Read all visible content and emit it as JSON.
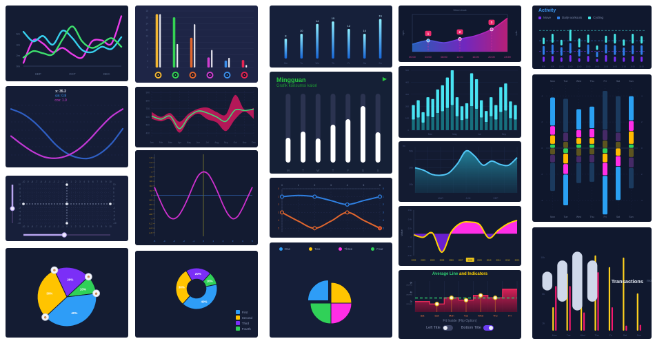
{
  "page": {
    "background": "#ffffff",
    "panel_background": "#141c33"
  },
  "panels": {
    "p8": {
      "legend": [
        {
          "label": "First",
          "color": "#2e9df7"
        },
        {
          "label": "Second",
          "color": "#ffc400"
        },
        {
          "label": "Third",
          "color": "#7b2ff7"
        },
        {
          "label": "Fourth",
          "color": "#30d158"
        }
      ]
    },
    "p10": {
      "title": "Mingguan",
      "subtitle": "Grafik konsumsi kalori",
      "play_icon": "▶"
    },
    "p12": {
      "legend": [
        {
          "label": "One",
          "color": "#2e9df7"
        },
        {
          "label": "Two",
          "color": "#ffc400"
        },
        {
          "label": "Three",
          "color": "#ff2ee6"
        },
        {
          "label": "Four",
          "color": "#30d158"
        }
      ]
    },
    "p17": {
      "title_green": "Average Line",
      "title_yellow": " and Indicators",
      "caption": "Fit Inside (Flip Option)",
      "toggles": [
        {
          "label": "Left Title",
          "on": false
        },
        {
          "label": "Bottom Title",
          "on": true
        }
      ]
    },
    "p18": {
      "title": "Activity",
      "legend": [
        {
          "label": "Move",
          "color": "#7b2ff7"
        },
        {
          "label": "Daily workouts",
          "color": "#2f7fe8"
        },
        {
          "label": "Cycling",
          "color": "#45e6e6"
        }
      ]
    },
    "p20": {
      "title": "Transactions",
      "suffix": "mo"
    }
  },
  "chart_data": [
    {
      "id": "p1",
      "type": "multiline",
      "x_labels": [
        "SEP",
        "OCT",
        "DEC"
      ],
      "y_labels": [
        "6m",
        "4m",
        "2m",
        "0m"
      ],
      "ymax": 10,
      "series": [
        {
          "name": "magenta",
          "color": "#ea3cea",
          "values": [
            0.6,
            4.8,
            4.2,
            2.6,
            3.4,
            2.2,
            1.6,
            4.6,
            4.8,
            4.2,
            9.3
          ]
        },
        {
          "name": "cyan",
          "color": "#37d0ee",
          "values": [
            6.4,
            4.6,
            5.6,
            4.0,
            6.6,
            5.2,
            3.0,
            2.6,
            3.6,
            3.2,
            5.4
          ]
        },
        {
          "name": "green",
          "color": "#3ee06e",
          "values": [
            1.6,
            2.8,
            2.4,
            2.2,
            5.0,
            7.4,
            4.6,
            3.4,
            4.2,
            5.2,
            3.6
          ]
        }
      ]
    },
    {
      "id": "p2",
      "type": "sincross",
      "tooltip": [
        {
          "text": "x: 35.2",
          "color": "#e8ecf5"
        },
        {
          "text": "sin: 0.8",
          "color": "#3f9bf5"
        },
        {
          "text": "cos: 1.0",
          "color": "#d53cd5"
        }
      ],
      "series": [
        {
          "name": "sin",
          "color": "#2f5fc4",
          "values": [
            1.0,
            0.82,
            0.5,
            0.05,
            -0.45,
            -0.8,
            -0.98,
            -1.0,
            -0.8,
            -0.4,
            0.2
          ]
        },
        {
          "name": "cos",
          "color": "#c338d6",
          "values": [
            -0.1,
            -0.45,
            -0.75,
            -0.95,
            -1.0,
            -0.9,
            -0.65,
            -0.25,
            0.25,
            0.7,
            1.0
          ]
        }
      ]
    },
    {
      "id": "p3",
      "type": "zoomgrid",
      "axis_min": -10,
      "axis_max": 10,
      "slider_color": "#b9a6f0",
      "v_slider_pos": 0.62,
      "h_slider_pos": 0.47
    },
    {
      "id": "p4",
      "type": "pie",
      "inner_ratio": 0,
      "start_angle": -115,
      "cy_off": 6,
      "badges": true,
      "badge_glyph": "☻",
      "slices": [
        {
          "label": "20%",
          "value": 20,
          "color": "#7b2ff7"
        },
        {
          "label": "10%",
          "value": 10,
          "color": "#30d158"
        },
        {
          "label": "40%",
          "value": 40,
          "color": "#2e9df7"
        },
        {
          "label": "30%",
          "value": 30,
          "color": "#ffc400"
        }
      ]
    },
    {
      "id": "p5",
      "type": "barpairs",
      "ymax": 18,
      "y_step": 2,
      "groups": [
        {
          "color": "#f2b632",
          "bar": 17,
          "white": 17
        },
        {
          "color": "#35d453",
          "bar": 16,
          "white": 7.5
        },
        {
          "color": "#e0662e",
          "bar": 9.5,
          "white": 13.8
        },
        {
          "color": "#cf3ecf",
          "bar": 3.2,
          "white": 5.6
        },
        {
          "color": "#3b8de8",
          "bar": 2.2,
          "white": 3.1
        },
        {
          "color": "#e82552",
          "bar": 2.4,
          "white": 0.8
        }
      ]
    },
    {
      "id": "p6",
      "type": "band",
      "x_labels": [
        "Jan",
        "Feb",
        "Mar",
        "Apr",
        "May",
        "Jun",
        "Jul",
        "Aug",
        "Sep",
        "Oct",
        "Nov",
        "Dec"
      ],
      "y_ticks": [
        400,
        500,
        600,
        700,
        800,
        900
      ],
      "ymin": 350,
      "ymax": 920,
      "upper": [
        660,
        600,
        645,
        540,
        640,
        700,
        715,
        660,
        630,
        870,
        690,
        710
      ],
      "lower": [
        575,
        545,
        565,
        405,
        565,
        640,
        570,
        530,
        425,
        570,
        665,
        575
      ],
      "line": [
        610,
        572,
        608,
        455,
        600,
        672,
        648,
        598,
        545,
        685,
        678,
        695
      ],
      "band_color": "#c2185b",
      "line_color": "#43d977"
    },
    {
      "id": "p7",
      "type": "sinaxes",
      "y_tick_top": 1.6,
      "y_step": 0.2,
      "x_min": -5,
      "x_max": 5,
      "curve_color": "#cf30cf",
      "y_label_color": "#d4a017",
      "x_label_color": "#3e8ef7",
      "values": [
        0.35,
        -0.15,
        -0.6,
        -0.92,
        -1.0,
        -0.85,
        -0.5,
        -0.05,
        0.45,
        0.85,
        1.0,
        0.9,
        0.55,
        0.1,
        -0.4,
        -0.8,
        -1.0,
        -0.9,
        -0.55,
        -0.1,
        0.35
      ]
    },
    {
      "id": "p8",
      "type": "pie",
      "inner_ratio": 0.46,
      "start_angle": -120,
      "cy_off": -8,
      "radius": 30,
      "slices": [
        {
          "label": "20%",
          "value": 20,
          "color": "#7b2ff7"
        },
        {
          "label": "10%",
          "value": 10,
          "color": "#30d158"
        },
        {
          "label": "40%",
          "value": 40,
          "color": "#2e9df7"
        },
        {
          "label": "30%",
          "value": 30,
          "color": "#ffc400"
        }
      ]
    },
    {
      "id": "p9",
      "type": "gradbars",
      "values": [
        8,
        10,
        14,
        15,
        12,
        10,
        16
      ],
      "ymax": 17,
      "x_labels": [
        "Mo",
        "Tu",
        "We",
        "Th",
        "Fr",
        "Sa",
        "Su"
      ],
      "bar_top_color": "#8ff0ff",
      "bar_bottom_color": "#1766d8"
    },
    {
      "id": "p10",
      "type": "capsules",
      "fills": [
        0.36,
        0.45,
        0.35,
        0.55,
        0.63,
        0.82,
        0.44
      ],
      "x_labels": [
        "M",
        "T",
        "W",
        "T",
        "F",
        "S",
        "S"
      ],
      "track_color": "#2b3350",
      "fill_color": "#ffffff"
    },
    {
      "id": "p11",
      "type": "duallines",
      "x_ticks": [
        0,
        1,
        2,
        3,
        4,
        5,
        6
      ],
      "y_ticks": [
        0,
        1,
        2,
        3,
        4,
        5
      ],
      "ymax": 5.5,
      "marker_x": [
        0,
        2,
        4,
        6
      ],
      "series": [
        {
          "name": "blue",
          "color": "#2f7fe0",
          "values": [
            1,
            0.85,
            1,
            1.5,
            2,
            1.5,
            1
          ]
        },
        {
          "name": "orange",
          "color": "#e0662e",
          "values": [
            3,
            4.1,
            5,
            4.1,
            3,
            4,
            5
          ]
        }
      ]
    },
    {
      "id": "p12",
      "type": "pie",
      "inner_ratio": 0,
      "start_angle": -180,
      "cy_off": 12,
      "radius": 30,
      "explode_index": 0,
      "slices": [
        {
          "label": "",
          "value": 25,
          "color": "#2e9df7"
        },
        {
          "label": "",
          "value": 25,
          "color": "#ffc400"
        },
        {
          "label": "",
          "value": 25,
          "color": "#ff2ee6"
        },
        {
          "label": "",
          "value": 25,
          "color": "#30d158"
        }
      ]
    },
    {
      "id": "p13",
      "type": "areatime",
      "title": "Wind clock",
      "side_label": "mph",
      "x_labels": [
        "00:00",
        "04:00",
        "08:00",
        "12:00",
        "16:00",
        "20:00",
        "23:59"
      ],
      "values": [
        2,
        3,
        2.4,
        3.4,
        4.3,
        6,
        9
      ],
      "ymax": 10,
      "badges": [
        {
          "index": 1,
          "label": "1"
        },
        {
          "index": 3,
          "label": "2"
        },
        {
          "index": 5,
          "label": "3"
        }
      ],
      "colors": {
        "start": "#2f6fd8",
        "mid": "#8a2be2",
        "end": "#e0218a",
        "badge": "#ed2d6e"
      }
    },
    {
      "id": "p14",
      "type": "densebars",
      "bottom_fraction": 0.42,
      "top_color": "#49e4f2",
      "bottom_color": "#17707e",
      "values": [
        0.42,
        0.5,
        0.3,
        0.55,
        0.52,
        0.68,
        0.75,
        0.88,
        1.0,
        0.55,
        0.4,
        0.45,
        0.95,
        0.85,
        0.5,
        0.32,
        0.55,
        0.42,
        0.72,
        0.78,
        0.48,
        0.42
      ],
      "y_labels": [
        "500",
        "400",
        "300",
        "200",
        "100",
        "0"
      ],
      "x_labels": [
        "Mar",
        "May",
        "Jul",
        "Sep"
      ]
    },
    {
      "id": "p15",
      "type": "tealarea",
      "values": [
        30,
        27,
        22,
        21,
        24,
        35,
        50,
        44,
        33,
        38,
        34,
        33,
        42
      ],
      "ymax": 55,
      "y_labels": [
        {
          "v": 50,
          "t": "50k"
        },
        {
          "v": 30,
          "t": "30k"
        },
        {
          "v": 10,
          "t": "10k"
        }
      ],
      "x_labels": [
        {
          "f": 0.25,
          "t": "MAR"
        },
        {
          "f": 0.52,
          "t": "JUN"
        },
        {
          "f": 0.79,
          "t": "SEP"
        }
      ],
      "corner": "m²",
      "line_color": "#52c7f7"
    },
    {
      "id": "p16",
      "type": "banddiv",
      "y_label": "Value",
      "highlight_index": 6,
      "x_labels": [
        "2002",
        "2003",
        "2004",
        "2005",
        "2006",
        "2007",
        "2008",
        "2009",
        "2010",
        "2011",
        "2012",
        "2013"
      ],
      "values": [
        -0.03,
        -0.1,
        0.02,
        -0.52,
        0.05,
        0.3,
        0.33,
        0.26,
        -0.12,
        0.1,
        0.28,
        0.38
      ],
      "y_ticks": [
        "0.6k",
        "0.4k",
        "0.2k",
        "0",
        "-0.2k",
        "-0.4k"
      ],
      "line_color": "#ffd400",
      "above_color": "#ff2ee6",
      "below_color": "#6a1fd0"
    },
    {
      "id": "p17",
      "type": "stepavg",
      "categories": [
        "Sat",
        "Sun",
        "Mon",
        "Tue",
        "Wed",
        "Thu",
        "Fri"
      ],
      "values": [
        2.2,
        1.7,
        3.0,
        2.5,
        3.5,
        3.0,
        4.8
      ],
      "average": 2.95,
      "ymax": 6.5,
      "marker_indices": [
        1,
        2,
        3,
        4,
        5
      ],
      "y_ticks": [
        {
          "v": 2,
          "t": "2k",
          "sub": "USD/HKD"
        },
        {
          "v": 4,
          "t": "4k",
          "sub": "USD/HKD"
        },
        {
          "v": 6,
          "t": "6k",
          "sub": "USD/HKD"
        }
      ],
      "bar_color": "#e0215a",
      "avg_color": "#2ecc71",
      "x_label_color": "#ff7a45"
    },
    {
      "id": "p18",
      "type": "activity",
      "x_labels": [
        "8:00",
        "9:00",
        "10:00",
        "11:00",
        "12:00",
        "13:00",
        "14:00",
        "15:00",
        "16:00",
        "17:00",
        "18:00",
        "19:00"
      ],
      "bars": [
        [
          0.16,
          0.26,
          0.2
        ],
        [
          0.18,
          0.28,
          0.26
        ],
        [
          0.14,
          0.25,
          0.17
        ],
        [
          0.2,
          0.3,
          0.33
        ],
        [
          0.12,
          0.22,
          0.26
        ],
        [
          0.18,
          0.28,
          0.24
        ],
        [
          0.1,
          0.17,
          0.14
        ],
        [
          0.2,
          0.26,
          0.21
        ],
        [
          0.16,
          0.28,
          0.28
        ],
        [
          0.14,
          0.24,
          0.19
        ],
        [
          0.18,
          0.26,
          0.28
        ],
        [
          0.16,
          0.28,
          0.22
        ]
      ],
      "colors": [
        "#7b2ff7",
        "#2f7fe8",
        "#45e6e6"
      ],
      "dashes": [
        {
          "level": 0.85,
          "color": "#45e6e6"
        },
        {
          "level": 0.58,
          "color": "#2f7fe8"
        },
        {
          "level": 0.3,
          "color": "#7b2ff7"
        }
      ]
    },
    {
      "id": "p19",
      "type": "diverge",
      "days": [
        "Mon",
        "Tue",
        "Wed",
        "Thu",
        "Fri",
        "Sat",
        "Sun"
      ],
      "unit_max": 4.8,
      "y_ticks": [
        "4",
        "2",
        "0",
        "2",
        "4"
      ],
      "colors": {
        "bl": "#2aa0f2",
        "m": "#ff2ee6",
        "y": "#ffb900",
        "g": "#30d158",
        "mb": "#1b3a5e",
        "mp": "#452a66",
        "mo": "#5c5420"
      },
      "bars": [
        {
          "up": [
            [
              "g",
              0.3
            ],
            [
              "y",
              0.7
            ],
            [
              "m",
              0.7
            ],
            [
              "bl",
              2.2
            ]
          ],
          "down": [
            [
              "mo",
              0.5
            ],
            [
              "mp",
              0.6
            ],
            [
              "mb",
              2.2
            ]
          ]
        },
        {
          "up": [
            [
              "mo",
              0.5
            ],
            [
              "mp",
              0.7
            ],
            [
              "mb",
              2.6
            ]
          ],
          "down": [
            [
              "g",
              0.4
            ],
            [
              "y",
              0.8
            ],
            [
              "m",
              0.8
            ],
            [
              "bl",
              2.4
            ]
          ]
        },
        {
          "up": [
            [
              "g",
              0.3
            ],
            [
              "y",
              0.5
            ],
            [
              "m",
              0.6
            ],
            [
              "bl",
              1.6
            ]
          ],
          "down": [
            [
              "mo",
              0.6
            ],
            [
              "mp",
              0.5
            ],
            [
              "mb",
              1.6
            ]
          ]
        },
        {
          "up": [
            [
              "g",
              0.3
            ],
            [
              "y",
              0.5
            ],
            [
              "m",
              0.7
            ],
            [
              "bl",
              1.7
            ]
          ],
          "down": [
            [
              "mo",
              0.5
            ],
            [
              "mp",
              0.6
            ],
            [
              "mb",
              1.5
            ]
          ]
        },
        {
          "up": [
            [
              "mo",
              0.6
            ],
            [
              "mp",
              0.8
            ],
            [
              "mb",
              3.0
            ]
          ],
          "down": [
            [
              "g",
              0.4
            ],
            [
              "y",
              0.7
            ],
            [
              "m",
              1.0
            ],
            [
              "bl",
              3.0
            ]
          ]
        },
        {
          "up": [
            [
              "mo",
              0.5
            ],
            [
              "mp",
              0.7
            ],
            [
              "mb",
              2.8
            ]
          ],
          "down": [
            [
              "y",
              0.6
            ],
            [
              "m",
              0.8
            ],
            [
              "bl",
              2.6
            ]
          ]
        },
        {
          "up": [
            [
              "g",
              0.3
            ],
            [
              "y",
              1.0
            ],
            [
              "m",
              0.8
            ],
            [
              "bl",
              1.9
            ]
          ],
          "down": [
            [
              "mo",
              0.7
            ],
            [
              "mp",
              0.8
            ],
            [
              "mb",
              1.6
            ]
          ]
        }
      ]
    },
    {
      "id": "p20",
      "type": "thinpairs",
      "ymax": 11.5,
      "x_labels": [
        "Mon",
        "Tue",
        "Wed",
        "Thu",
        "Fri",
        "Sat",
        "Sun"
      ],
      "y_ticks": [
        {
          "v": 10,
          "t": "10k"
        },
        {
          "v": 5,
          "t": "5k"
        },
        {
          "v": 1,
          "t": "1k"
        }
      ],
      "series": [
        {
          "name": "yellow",
          "color": "#ffd21e",
          "values": [
            3.2,
            7.8,
            9.2,
            10.3,
            8.7,
            10,
            5.1
          ]
        },
        {
          "name": "pink",
          "color": "#f5196e",
          "values": [
            6.1,
            6.1,
            2.5,
            8,
            3.2,
            0.7,
            0.8
          ]
        }
      ]
    }
  ]
}
